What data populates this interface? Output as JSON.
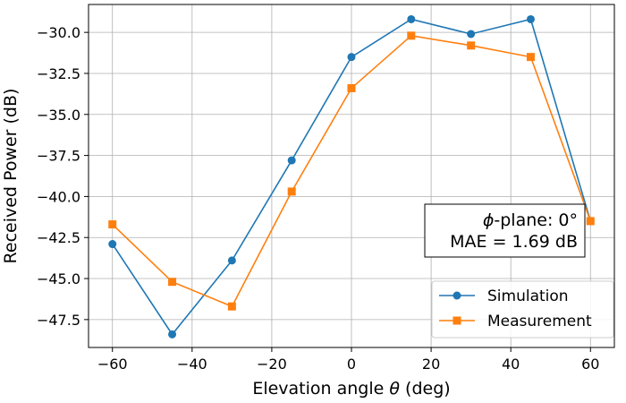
{
  "chart_data": {
    "type": "line",
    "title": "",
    "xlabel_prefix": "Elevation angle ",
    "xlabel_symbol": "θ",
    "xlabel_suffix": " (deg)",
    "ylabel": "Received Power (dB)",
    "xlim": [
      -66,
      66
    ],
    "ylim": [
      -49.2,
      -28.3
    ],
    "xticks": [
      -60,
      -40,
      -20,
      0,
      20,
      40,
      60
    ],
    "xtick_labels": [
      "−60",
      "−40",
      "−20",
      "0",
      "20",
      "40",
      "60"
    ],
    "yticks": [
      -47.5,
      -45.0,
      -42.5,
      -40.0,
      -37.5,
      -35.0,
      -32.5,
      -30.0
    ],
    "ytick_labels": [
      "−47.5",
      "−45.0",
      "−42.5",
      "−40.0",
      "−37.5",
      "−35.0",
      "−32.5",
      "−30.0"
    ],
    "grid": true,
    "legend_position": "lower-right",
    "x": [
      -60,
      -45,
      -30,
      -15,
      0,
      15,
      30,
      45,
      60
    ],
    "series": [
      {
        "name": "Simulation",
        "marker": "circle",
        "color": "#1f77b4",
        "values": [
          -42.9,
          -48.4,
          -43.9,
          -37.8,
          -31.5,
          -29.2,
          -30.1,
          -29.2,
          -41.5
        ]
      },
      {
        "name": "Measurement",
        "marker": "square",
        "color": "#ff7f0e",
        "values": [
          -41.7,
          -45.2,
          -46.7,
          -39.7,
          -33.4,
          -30.2,
          -30.8,
          -31.5,
          -41.5
        ]
      }
    ],
    "annotation": {
      "line1_symbol": "ϕ",
      "line1_rest": "-plane: 0°",
      "line2": "MAE = 1.69 dB"
    }
  }
}
